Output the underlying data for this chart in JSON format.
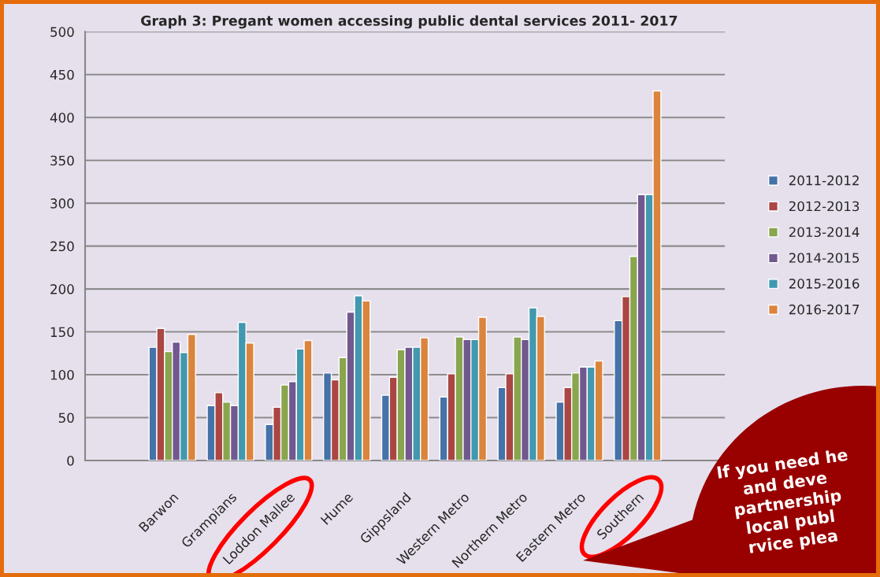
{
  "chart_data": {
    "type": "bar",
    "title": "Graph 3: Pregant women accessing public dental services 2011- 2017",
    "categories": [
      null,
      "Barwon",
      "Grampians",
      "Loddon Mallee",
      "Hume",
      "Gippsland",
      "Western Metro",
      "Northern Metro",
      "Eastern Metro",
      "Southern",
      null
    ],
    "series": [
      {
        "name": "2011-2012",
        "color": "#4572a7",
        "values": [
          null,
          132,
          64,
          42,
          102,
          76,
          74,
          85,
          68,
          163,
          null
        ]
      },
      {
        "name": "2012-2013",
        "color": "#aa4643",
        "values": [
          null,
          154,
          79,
          62,
          94,
          97,
          101,
          101,
          85,
          191,
          null
        ]
      },
      {
        "name": "2013-2014",
        "color": "#89a54e",
        "values": [
          null,
          127,
          68,
          88,
          120,
          129,
          144,
          144,
          102,
          238,
          null
        ]
      },
      {
        "name": "2014-2015",
        "color": "#71588f",
        "values": [
          null,
          138,
          64,
          92,
          173,
          132,
          141,
          141,
          109,
          310,
          null
        ]
      },
      {
        "name": "2015-2016",
        "color": "#4198af",
        "values": [
          null,
          126,
          161,
          130,
          192,
          132,
          141,
          178,
          109,
          310,
          null
        ]
      },
      {
        "name": "2016-2017",
        "color": "#db843d",
        "values": [
          null,
          147,
          137,
          140,
          186,
          143,
          167,
          168,
          116,
          431,
          null
        ]
      }
    ],
    "ylim": [
      0,
      500
    ],
    "yticks": [
      0,
      50,
      100,
      150,
      200,
      250,
      300,
      350,
      400,
      450,
      500
    ],
    "grid": "y",
    "legend": "right",
    "annotations": [
      "If you need he\nand deve\npartnership\nlocal publ\nrvice plea"
    ]
  }
}
